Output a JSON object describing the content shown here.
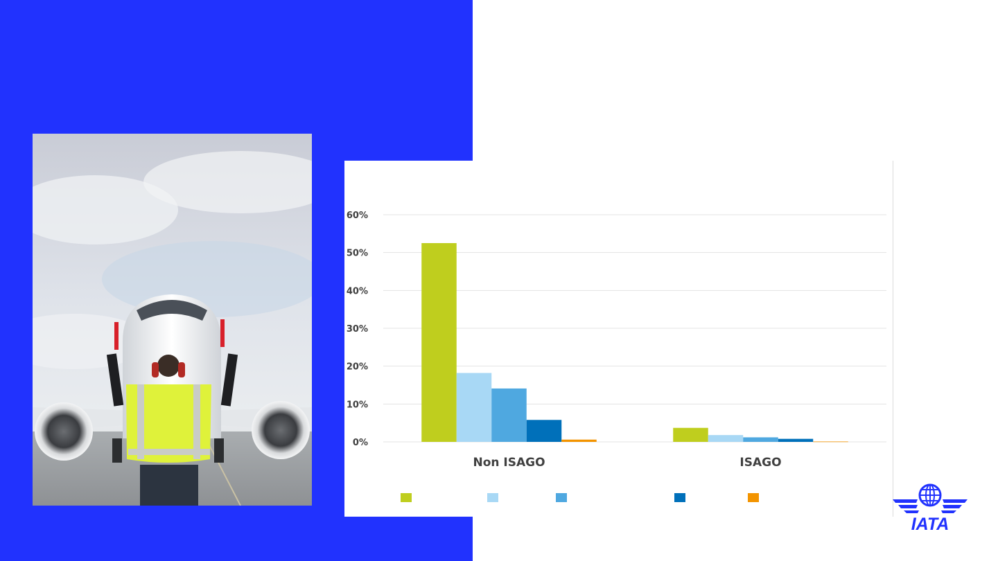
{
  "slide": {
    "background_left": "#2132fe",
    "background_right": "#ffffff"
  },
  "photo": {
    "icon": "aircraft-marshaller-photo"
  },
  "logo": {
    "text": "IATA",
    "color": "#2132fe",
    "icon": "iata-globe-wings-logo"
  },
  "chart_data": {
    "type": "bar",
    "title": "",
    "xlabel": "",
    "ylabel": "",
    "categories": [
      "Non ISAGO",
      "ISAGO"
    ],
    "ylim": [
      0,
      0.6
    ],
    "yticks": [
      0,
      0.1,
      0.2,
      0.3,
      0.4,
      0.5,
      0.6
    ],
    "ytick_labels": [
      "0%",
      "10%",
      "20%",
      "30%",
      "40%",
      "50%",
      "60%"
    ],
    "grid": true,
    "legend_position": "bottom",
    "series": [
      {
        "values": [
          0.525,
          0.037
        ],
        "color": "#bfce1e"
      },
      {
        "values": [
          0.182,
          0.018
        ],
        "color": "#a8d8f5"
      },
      {
        "values": [
          0.141,
          0.012
        ],
        "color": "#4fa8e0"
      },
      {
        "values": [
          0.058,
          0.008
        ],
        "color": "#0070ba"
      },
      {
        "values": [
          0.006,
          0.001
        ],
        "color": "#f39400"
      }
    ]
  }
}
